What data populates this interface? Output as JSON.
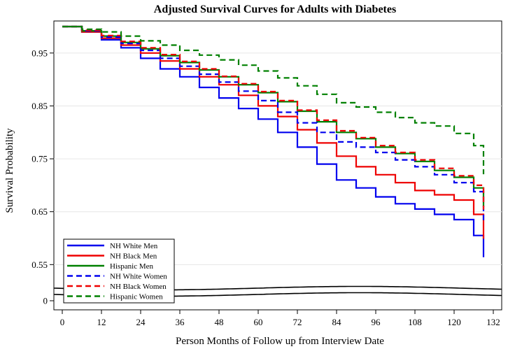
{
  "chart_data": {
    "type": "line",
    "title": "Adjusted Survival Curves for Adults with Diabetes",
    "xlabel": "Person Months of Follow up from Interview Date",
    "ylabel": "Survival Probability",
    "xlim": [
      0,
      132
    ],
    "ylim_upper": [
      0.52,
      1.0
    ],
    "ylim_lower": [
      0,
      0.02
    ],
    "axis_break": true,
    "x_ticks": [
      "0",
      "12",
      "24",
      "36",
      "48",
      "60",
      "72",
      "84",
      "96",
      "108",
      "120",
      "132"
    ],
    "y_ticks": [
      {
        "value": 0.95,
        "label": "0.95"
      },
      {
        "value": 0.85,
        "label": "0.85"
      },
      {
        "value": 0.75,
        "label": "0.75"
      },
      {
        "value": 0.65,
        "label": "0.65"
      },
      {
        "value": 0.55,
        "label": "0.55"
      },
      {
        "value": 0,
        "label": "0"
      }
    ],
    "legend_position": "bottom-left",
    "series": [
      {
        "name": "NH White Men",
        "color": "#0000ee",
        "dash": "solid",
        "x": [
          0,
          6,
          12,
          18,
          24,
          30,
          36,
          42,
          48,
          54,
          60,
          66,
          72,
          78,
          84,
          90,
          96,
          102,
          108,
          114,
          120,
          126,
          129
        ],
        "y": [
          1.0,
          0.99,
          0.975,
          0.96,
          0.94,
          0.92,
          0.905,
          0.885,
          0.865,
          0.845,
          0.825,
          0.8,
          0.772,
          0.74,
          0.71,
          0.695,
          0.678,
          0.665,
          0.655,
          0.645,
          0.635,
          0.605,
          0.585
        ]
      },
      {
        "name": "NH Black Men",
        "color": "#ee0000",
        "dash": "solid",
        "x": [
          0,
          6,
          12,
          18,
          24,
          30,
          36,
          42,
          48,
          54,
          60,
          66,
          72,
          78,
          84,
          90,
          96,
          102,
          108,
          114,
          120,
          126,
          129
        ],
        "y": [
          1.0,
          0.99,
          0.978,
          0.965,
          0.95,
          0.935,
          0.92,
          0.905,
          0.89,
          0.87,
          0.85,
          0.83,
          0.805,
          0.78,
          0.755,
          0.735,
          0.72,
          0.705,
          0.69,
          0.682,
          0.672,
          0.645,
          0.62
        ]
      },
      {
        "name": "Hispanic Men",
        "color": "#008000",
        "dash": "solid",
        "x": [
          0,
          6,
          12,
          18,
          24,
          30,
          36,
          42,
          48,
          54,
          60,
          66,
          72,
          78,
          84,
          90,
          96,
          102,
          108,
          114,
          120,
          126,
          129
        ],
        "y": [
          1.0,
          0.992,
          0.982,
          0.97,
          0.958,
          0.945,
          0.932,
          0.918,
          0.905,
          0.89,
          0.875,
          0.858,
          0.84,
          0.82,
          0.8,
          0.788,
          0.772,
          0.76,
          0.745,
          0.728,
          0.715,
          0.695,
          0.68
        ]
      },
      {
        "name": "NH White Women",
        "color": "#0000ee",
        "dash": "dashed",
        "x": [
          0,
          6,
          12,
          18,
          24,
          30,
          36,
          42,
          48,
          54,
          60,
          66,
          72,
          78,
          84,
          90,
          96,
          102,
          108,
          114,
          120,
          126,
          129
        ],
        "y": [
          1.0,
          0.992,
          0.98,
          0.968,
          0.955,
          0.94,
          0.925,
          0.91,
          0.895,
          0.878,
          0.86,
          0.838,
          0.818,
          0.8,
          0.782,
          0.772,
          0.762,
          0.748,
          0.735,
          0.72,
          0.705,
          0.688,
          0.655
        ]
      },
      {
        "name": "NH Black Women",
        "color": "#ee0000",
        "dash": "dashed",
        "x": [
          0,
          6,
          12,
          18,
          24,
          30,
          36,
          42,
          48,
          54,
          60,
          66,
          72,
          78,
          84,
          90,
          96,
          102,
          108,
          114,
          120,
          126,
          129
        ],
        "y": [
          1.0,
          0.993,
          0.983,
          0.972,
          0.96,
          0.947,
          0.934,
          0.92,
          0.906,
          0.892,
          0.877,
          0.86,
          0.842,
          0.823,
          0.803,
          0.79,
          0.775,
          0.762,
          0.748,
          0.732,
          0.718,
          0.7,
          0.675
        ]
      },
      {
        "name": "Hispanic Women",
        "color": "#008000",
        "dash": "dashed",
        "x": [
          0,
          6,
          12,
          18,
          24,
          30,
          36,
          42,
          48,
          54,
          60,
          66,
          72,
          78,
          84,
          90,
          96,
          102,
          108,
          114,
          120,
          126,
          129
        ],
        "y": [
          1.0,
          0.995,
          0.99,
          0.982,
          0.973,
          0.965,
          0.955,
          0.946,
          0.937,
          0.927,
          0.916,
          0.903,
          0.888,
          0.872,
          0.856,
          0.848,
          0.838,
          0.828,
          0.818,
          0.812,
          0.798,
          0.775,
          0.742
        ]
      }
    ]
  }
}
